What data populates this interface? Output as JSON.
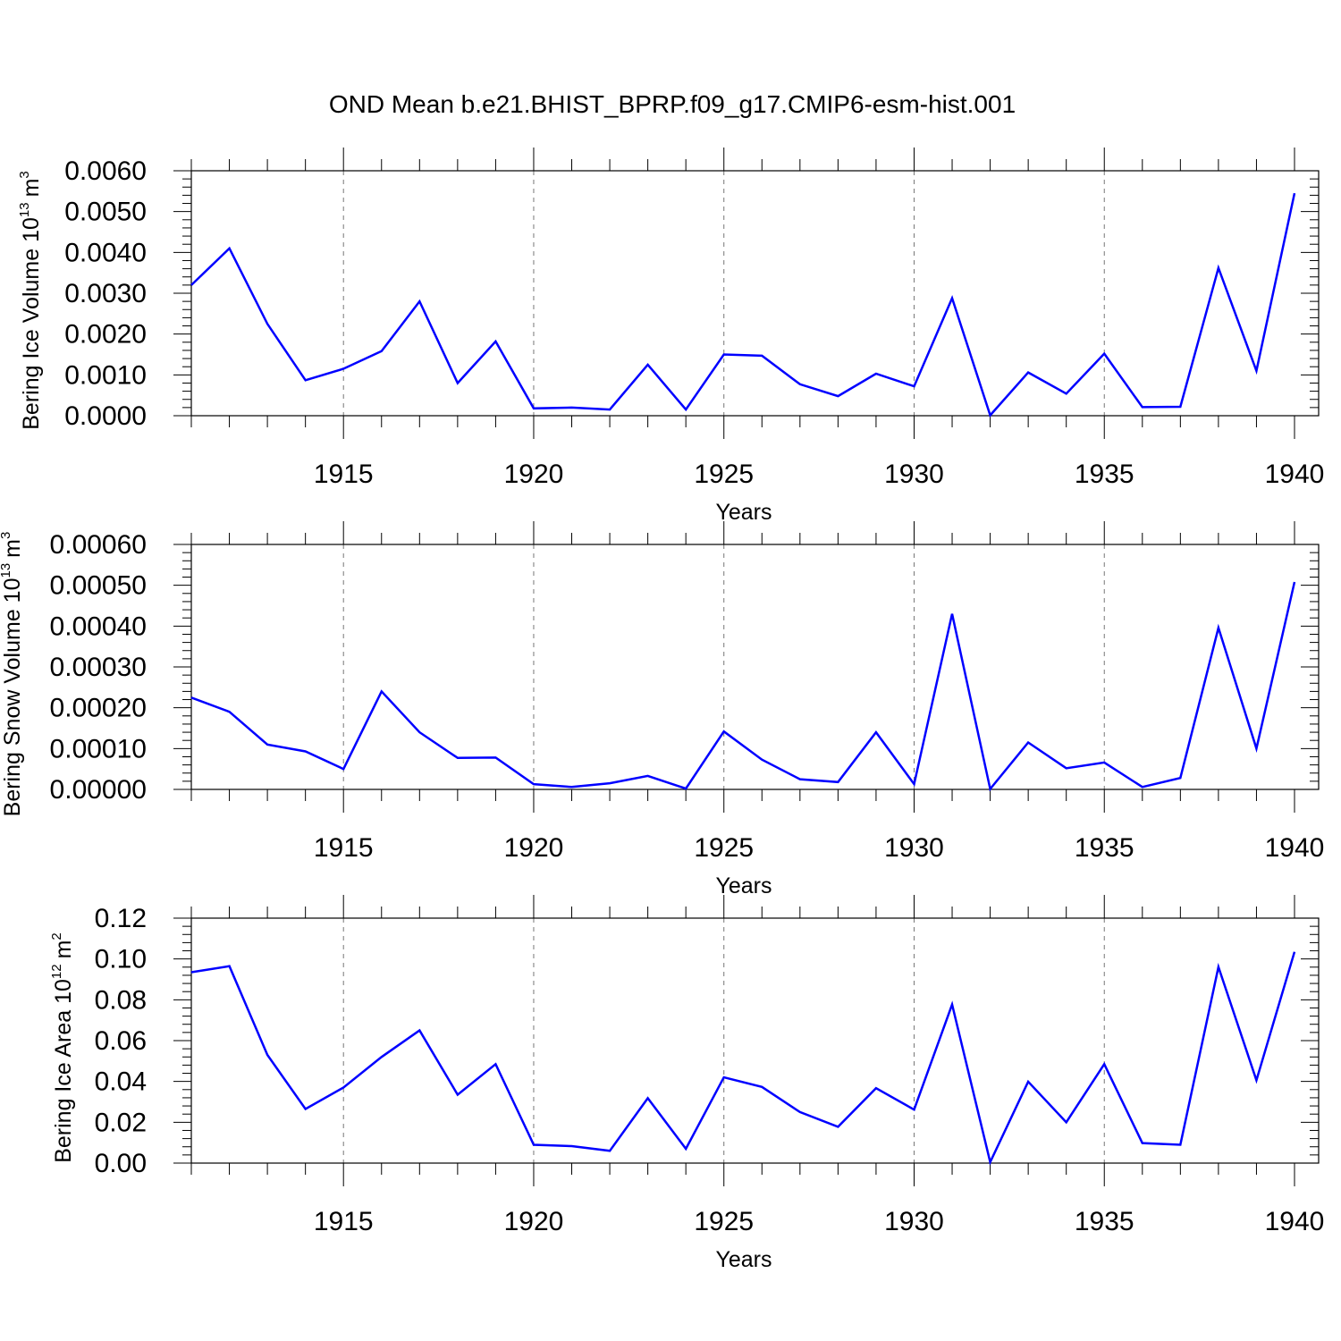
{
  "title": "OND Mean b.e21.BHIST_BPRP.f09_g17.CMIP6-esm-hist.001",
  "line_color": "#0000ff",
  "chart_data": [
    {
      "type": "line",
      "ylabel_main": "Bering Ice Volume 10",
      "ylabel_exp": "13",
      "ylabel_unit": "m",
      "ylabel_unit_exp": "3",
      "xlabel": "Years",
      "xlim": [
        1911,
        1940
      ],
      "ylim": [
        0,
        0.006
      ],
      "yticks": [
        0,
        0.001,
        0.002,
        0.003,
        0.004,
        0.005,
        0.006
      ],
      "ytick_labels": [
        "0.0000",
        "0.0010",
        "0.0020",
        "0.0030",
        "0.0040",
        "0.0050",
        "0.0060"
      ],
      "xticks": [
        1915,
        1920,
        1925,
        1930,
        1935,
        1940
      ],
      "xtick_labels": [
        "1915",
        "1920",
        "1925",
        "1930",
        "1935",
        "1940"
      ],
      "x": [
        1911,
        1912,
        1913,
        1914,
        1915,
        1916,
        1917,
        1918,
        1919,
        1920,
        1921,
        1922,
        1923,
        1924,
        1925,
        1926,
        1927,
        1928,
        1929,
        1930,
        1931,
        1932,
        1933,
        1934,
        1935,
        1936,
        1937,
        1938,
        1939,
        1940
      ],
      "values": [
        0.0032,
        0.0041,
        0.00225,
        0.00087,
        0.00115,
        0.00158,
        0.0028,
        0.0008,
        0.00182,
        0.00018,
        0.0002,
        0.00015,
        0.00125,
        0.00015,
        0.0015,
        0.00147,
        0.00077,
        0.00048,
        0.00103,
        0.00072,
        0.00288,
        1e-05,
        0.00106,
        0.00054,
        0.00152,
        0.00021,
        0.00022,
        0.00362,
        0.0011,
        0.00545
      ]
    },
    {
      "type": "line",
      "ylabel_main": "Bering Snow Volume 10",
      "ylabel_exp": "13",
      "ylabel_unit": "m",
      "ylabel_unit_exp": "3",
      "xlabel": "Years",
      "xlim": [
        1911,
        1940
      ],
      "ylim": [
        0,
        0.0006
      ],
      "yticks": [
        0,
        0.0001,
        0.0002,
        0.0003,
        0.0004,
        0.0005,
        0.0006
      ],
      "ytick_labels": [
        "0.00000",
        "0.00010",
        "0.00020",
        "0.00030",
        "0.00040",
        "0.00050",
        "0.00060"
      ],
      "xticks": [
        1915,
        1920,
        1925,
        1930,
        1935,
        1940
      ],
      "xtick_labels": [
        "1915",
        "1920",
        "1925",
        "1930",
        "1935",
        "1940"
      ],
      "x": [
        1911,
        1912,
        1913,
        1914,
        1915,
        1916,
        1917,
        1918,
        1919,
        1920,
        1921,
        1922,
        1923,
        1924,
        1925,
        1926,
        1927,
        1928,
        1929,
        1930,
        1931,
        1932,
        1933,
        1934,
        1935,
        1936,
        1937,
        1938,
        1939,
        1940
      ],
      "values": [
        0.000225,
        0.00019,
        0.00011,
        9.3e-05,
        5e-05,
        0.00024,
        0.00014,
        7.7e-05,
        7.8e-05,
        1.3e-05,
        6e-06,
        1.5e-05,
        3.3e-05,
        2e-06,
        0.000142,
        7.3e-05,
        2.5e-05,
        1.8e-05,
        0.00014,
        1.3e-05,
        0.00043,
        1e-06,
        0.000115,
        5.2e-05,
        6.6e-05,
        6e-06,
        2.8e-05,
        0.000396,
        0.0001,
        0.000508
      ]
    },
    {
      "type": "line",
      "ylabel_main": "Bering Ice Area 10",
      "ylabel_exp": "12",
      "ylabel_unit": "m",
      "ylabel_unit_exp": "2",
      "xlabel": "Years",
      "xlim": [
        1911,
        1940
      ],
      "ylim": [
        0,
        0.12
      ],
      "yticks": [
        0,
        0.02,
        0.04,
        0.06,
        0.08,
        0.1,
        0.12
      ],
      "ytick_labels": [
        "0.00",
        "0.02",
        "0.04",
        "0.06",
        "0.08",
        "0.10",
        "0.12"
      ],
      "xticks": [
        1915,
        1920,
        1925,
        1930,
        1935,
        1940
      ],
      "xtick_labels": [
        "1915",
        "1920",
        "1925",
        "1930",
        "1935",
        "1940"
      ],
      "x": [
        1911,
        1912,
        1913,
        1914,
        1915,
        1916,
        1917,
        1918,
        1919,
        1920,
        1921,
        1922,
        1923,
        1924,
        1925,
        1926,
        1927,
        1928,
        1929,
        1930,
        1931,
        1932,
        1933,
        1934,
        1935,
        1936,
        1937,
        1938,
        1939,
        1940
      ],
      "values": [
        0.0935,
        0.0965,
        0.053,
        0.0265,
        0.037,
        0.052,
        0.065,
        0.0335,
        0.0485,
        0.009,
        0.0083,
        0.006,
        0.0318,
        0.007,
        0.042,
        0.0373,
        0.025,
        0.0178,
        0.0367,
        0.0262,
        0.0777,
        0.0005,
        0.0399,
        0.02,
        0.0485,
        0.0098,
        0.009,
        0.0961,
        0.0406,
        0.1035
      ]
    }
  ]
}
